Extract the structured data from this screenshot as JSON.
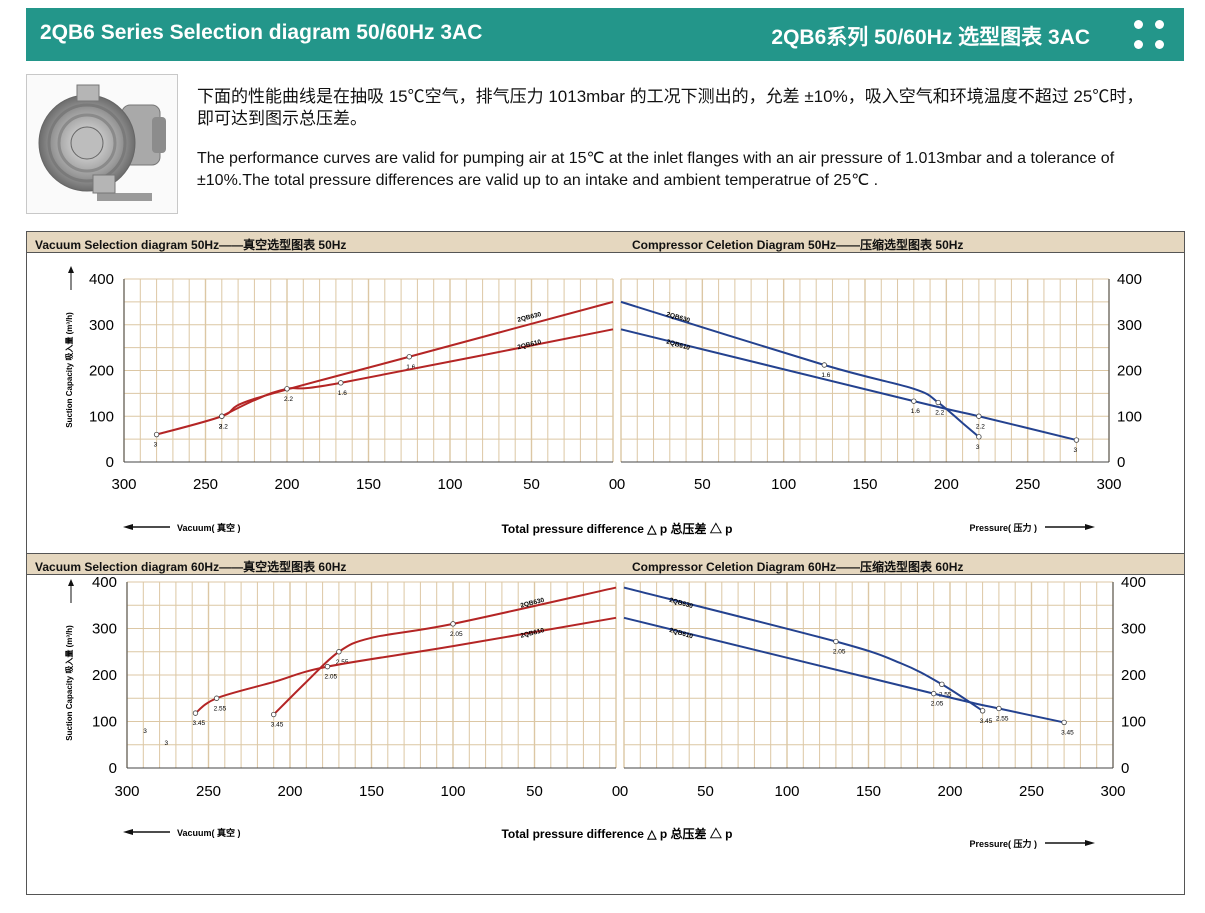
{
  "header": {
    "title_en": "2QB6 Series Selection diagram 50/60Hz 3AC",
    "title_cn": "2QB6系列 50/60Hz 选型图表 3AC"
  },
  "intro": {
    "text_cn": "下面的性能曲线是在抽吸 15℃空气，排气压力 1013mbar 的工况下测出的，允差 ±10%，吸入空气和环境温度不超过 25℃时，即可达到图示总压差。",
    "text_en": "The performance curves are valid for pumping air at 15℃ at the inlet flanges with an air pressure of 1.013mbar and a tolerance of ±10%.The total pressure differences are valid up to an intake and ambient temperatrue of 25℃ ."
  },
  "colors": {
    "header_bg": "#23968a",
    "band_bg": "#e5d7bf",
    "grid": "#dcc7a4",
    "vacuum_curve": "#b42525",
    "pressure_curve": "#24428f"
  },
  "common": {
    "ylabel": "Suction Capacity 吸入量  (m³/h)",
    "xlabel": "Total pressure difference △ p 总压差 △ p",
    "vacuum_arrow": "Vacuum( 真空 )",
    "pressure_arrow": "Pressure( 压力 )"
  },
  "chart_data": [
    {
      "type": "line",
      "title_vacuum": "Vacuum Selection diagram 50Hz——真空选型图表 50Hz",
      "title_pressure": "Compressor Celetion Diagram 50Hz——压缩选型图表 50Hz",
      "ylim": [
        0,
        400
      ],
      "yticks": [
        "400",
        "300",
        "200",
        "100",
        "0"
      ],
      "xlim": [
        0,
        300
      ],
      "xticks": [
        "300",
        "250",
        "200",
        "150",
        "100",
        "50",
        "0"
      ],
      "pticks": [
        "0",
        "50",
        "100",
        "150",
        "200",
        "250",
        "300"
      ],
      "series": [
        {
          "name": "2QB630",
          "side": "vacuum",
          "points": [
            [
              280,
              60
            ],
            [
              240,
              100
            ],
            [
              220,
              138
            ],
            [
              125,
              230
            ],
            [
              0,
              350
            ]
          ],
          "markers": [
            [
              280,
              60,
              "3"
            ],
            [
              240,
              100,
              "3"
            ],
            [
              125,
              230,
              "1.6"
            ]
          ]
        },
        {
          "name": "2QB610",
          "side": "vacuum",
          "points": [
            [
              240,
              100
            ],
            [
              220,
              135
            ],
            [
              200,
              160
            ],
            [
              167,
              173
            ],
            [
              0,
              290
            ]
          ],
          "markers": [
            [
              240,
              100,
              "2.2"
            ],
            [
              200,
              160,
              "2.2"
            ],
            [
              167,
              173,
              "1.6"
            ]
          ]
        },
        {
          "name": "2QB630",
          "side": "pressure",
          "points": [
            [
              0,
              350
            ],
            [
              125,
              212
            ],
            [
              180,
              160
            ],
            [
              195,
              130
            ],
            [
              210,
              85
            ],
            [
              220,
              55
            ]
          ],
          "markers": [
            [
              125,
              212,
              "1.6"
            ],
            [
              195,
              130,
              "2.2"
            ],
            [
              220,
              55,
              "3"
            ]
          ]
        },
        {
          "name": "2QB610",
          "side": "pressure",
          "points": [
            [
              0,
              290
            ],
            [
              180,
              133
            ],
            [
              220,
              100
            ],
            [
              280,
              48
            ]
          ],
          "markers": [
            [
              180,
              133,
              "1.6"
            ],
            [
              220,
              100,
              "2.2"
            ],
            [
              280,
              48,
              "3"
            ]
          ]
        }
      ]
    },
    {
      "type": "line",
      "title_vacuum": "Vacuum Selection diagram 60Hz——真空选型图表 60Hz",
      "title_pressure": "Compressor Celetion Diagram 60Hz——压缩选型图表 60Hz",
      "ylim": [
        0,
        400
      ],
      "yticks": [
        "400",
        "300",
        "200",
        "100",
        "0"
      ],
      "xlim": [
        0,
        300
      ],
      "xticks": [
        "300",
        "250",
        "200",
        "150",
        "100",
        "50",
        "0"
      ],
      "pticks": [
        "0",
        "50",
        "100",
        "150",
        "200",
        "250",
        "300"
      ],
      "series": [
        {
          "name": "2QB630",
          "side": "vacuum",
          "points": [
            [
              210,
              115
            ],
            [
              190,
              185
            ],
            [
              170,
              250
            ],
            [
              150,
              280
            ],
            [
              100,
              310
            ],
            [
              0,
              388
            ]
          ],
          "markers": [
            [
              210,
              115,
              "3.45"
            ],
            [
              170,
              250,
              "2.55"
            ],
            [
              100,
              310,
              "2.05"
            ]
          ]
        },
        {
          "name": "2QB610",
          "side": "vacuum",
          "points": [
            [
              258,
              118
            ],
            [
              245,
              150
            ],
            [
              210,
              185
            ],
            [
              177,
              218
            ],
            [
              100,
              262
            ],
            [
              0,
              323
            ]
          ],
          "markers": [
            [
              258,
              118,
              "3.45"
            ],
            [
              245,
              150,
              "2.55"
            ],
            [
              177,
              218,
              "2.05"
            ]
          ]
        },
        {
          "name": "2QB630",
          "side": "pressure",
          "points": [
            [
              0,
              388
            ],
            [
              130,
              272
            ],
            [
              170,
              225
            ],
            [
              195,
              180
            ],
            [
              220,
              123
            ]
          ],
          "markers": [
            [
              130,
              272,
              "2.05"
            ],
            [
              195,
              180,
              "2.55"
            ],
            [
              220,
              123,
              "3.45"
            ]
          ]
        },
        {
          "name": "2QB610",
          "side": "pressure",
          "points": [
            [
              0,
              323
            ],
            [
              190,
              160
            ],
            [
              230,
              128
            ],
            [
              270,
              98
            ]
          ],
          "markers": [
            [
              190,
              160,
              "2.05"
            ],
            [
              230,
              128,
              "2.55"
            ],
            [
              270,
              98,
              "3.45"
            ]
          ]
        }
      ],
      "stray_labels": [
        [
          290,
          75,
          "3"
        ],
        [
          277,
          50,
          "3"
        ]
      ]
    }
  ]
}
